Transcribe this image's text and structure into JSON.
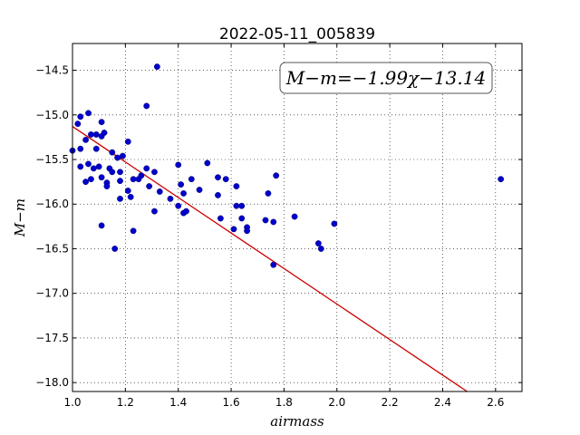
{
  "chart_data": {
    "type": "scatter",
    "title": "2022-05-11_005839",
    "xlabel": "airmass",
    "ylabel": "M−m",
    "xlim": [
      1.0,
      2.7
    ],
    "ylim": [
      -18.1,
      -14.2
    ],
    "xticks": [
      1.0,
      1.2,
      1.4,
      1.6,
      1.8,
      2.0,
      2.2,
      2.4,
      2.6
    ],
    "xtick_labels": [
      "1.0",
      "1.2",
      "1.4",
      "1.6",
      "1.8",
      "2.0",
      "2.2",
      "2.4",
      "2.6"
    ],
    "yticks": [
      -14.5,
      -15.0,
      -15.5,
      -16.0,
      -16.5,
      -17.0,
      -17.5,
      -18.0
    ],
    "ytick_labels": [
      "−14.5",
      "−15.0",
      "−15.5",
      "−16.0",
      "−16.5",
      "−17.0",
      "−17.5",
      "−18.0"
    ],
    "grid": true,
    "annotation": "M−m=−1.99χ−13.14",
    "fit": {
      "slope": -1.99,
      "intercept": -13.14,
      "color": "#cc0000"
    },
    "point_color": "#0000cc",
    "points": [
      [
        1.0,
        -15.4
      ],
      [
        1.02,
        -15.1
      ],
      [
        1.03,
        -15.02
      ],
      [
        1.03,
        -15.38
      ],
      [
        1.03,
        -15.58
      ],
      [
        1.05,
        -15.28
      ],
      [
        1.05,
        -15.75
      ],
      [
        1.06,
        -14.98
      ],
      [
        1.06,
        -15.55
      ],
      [
        1.07,
        -15.22
      ],
      [
        1.07,
        -15.72
      ],
      [
        1.08,
        -15.6
      ],
      [
        1.09,
        -15.22
      ],
      [
        1.09,
        -15.38
      ],
      [
        1.1,
        -15.58
      ],
      [
        1.11,
        -15.08
      ],
      [
        1.11,
        -15.24
      ],
      [
        1.11,
        -15.7
      ],
      [
        1.11,
        -16.24
      ],
      [
        1.12,
        -15.2
      ],
      [
        1.13,
        -15.76
      ],
      [
        1.13,
        -15.8
      ],
      [
        1.14,
        -15.6
      ],
      [
        1.15,
        -15.42
      ],
      [
        1.15,
        -15.64
      ],
      [
        1.16,
        -16.5
      ],
      [
        1.17,
        -15.48
      ],
      [
        1.18,
        -15.74
      ],
      [
        1.18,
        -15.94
      ],
      [
        1.18,
        -15.64
      ],
      [
        1.19,
        -15.46
      ],
      [
        1.21,
        -15.3
      ],
      [
        1.21,
        -15.85
      ],
      [
        1.22,
        -15.92
      ],
      [
        1.23,
        -15.72
      ],
      [
        1.23,
        -16.3
      ],
      [
        1.25,
        -15.72
      ],
      [
        1.26,
        -15.68
      ],
      [
        1.28,
        -14.9
      ],
      [
        1.28,
        -15.6
      ],
      [
        1.29,
        -15.8
      ],
      [
        1.31,
        -15.64
      ],
      [
        1.31,
        -16.08
      ],
      [
        1.32,
        -14.46
      ],
      [
        1.33,
        -15.86
      ],
      [
        1.37,
        -15.94
      ],
      [
        1.4,
        -16.02
      ],
      [
        1.4,
        -15.56
      ],
      [
        1.41,
        -15.78
      ],
      [
        1.42,
        -15.88
      ],
      [
        1.42,
        -16.1
      ],
      [
        1.43,
        -16.08
      ],
      [
        1.45,
        -15.72
      ],
      [
        1.48,
        -15.84
      ],
      [
        1.51,
        -15.54
      ],
      [
        1.55,
        -15.9
      ],
      [
        1.55,
        -15.7
      ],
      [
        1.56,
        -16.16
      ],
      [
        1.58,
        -15.72
      ],
      [
        1.61,
        -16.28
      ],
      [
        1.62,
        -16.02
      ],
      [
        1.62,
        -15.8
      ],
      [
        1.64,
        -16.02
      ],
      [
        1.64,
        -16.16
      ],
      [
        1.66,
        -16.26
      ],
      [
        1.66,
        -16.3
      ],
      [
        1.73,
        -16.18
      ],
      [
        1.74,
        -15.88
      ],
      [
        1.76,
        -16.2
      ],
      [
        1.76,
        -16.68
      ],
      [
        1.77,
        -15.68
      ],
      [
        1.84,
        -16.14
      ],
      [
        1.93,
        -16.44
      ],
      [
        1.94,
        -16.5
      ],
      [
        1.99,
        -16.22
      ],
      [
        2.62,
        -15.72
      ]
    ]
  }
}
